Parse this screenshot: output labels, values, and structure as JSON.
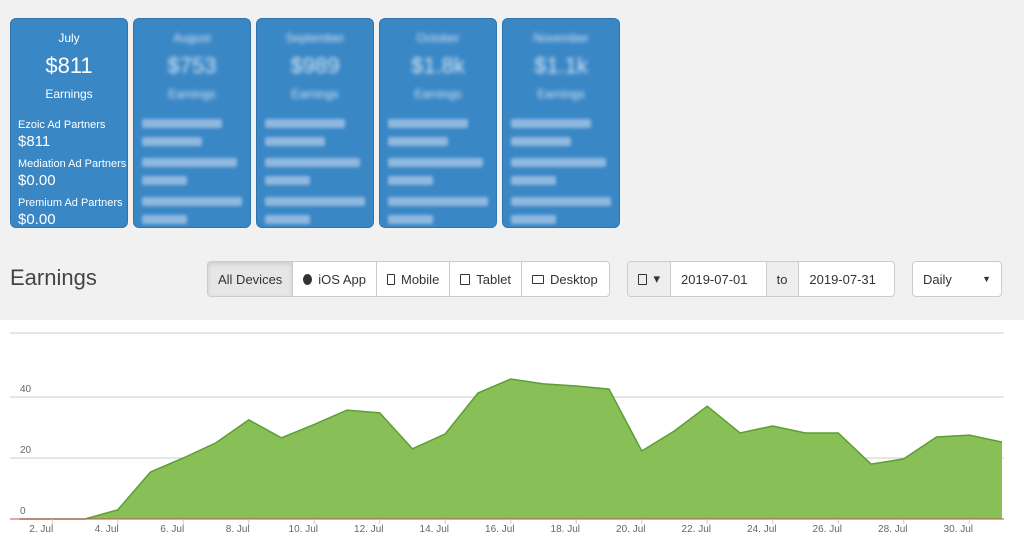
{
  "cards": [
    {
      "month": "July",
      "amount": "$811",
      "label": "Earnings",
      "rows": [
        {
          "label": "Ezoic Ad Partners",
          "value": "$811"
        },
        {
          "label": "Mediation Ad Partners",
          "value": "$0.00"
        },
        {
          "label": "Premium Ad Partners",
          "value": "$0.00"
        }
      ]
    },
    {
      "month": "August",
      "amount": "$753",
      "label": "Earnings"
    },
    {
      "month": "September",
      "amount": "$989",
      "label": "Earnings"
    },
    {
      "month": "October",
      "amount": "$1.8k",
      "label": "Earnings"
    },
    {
      "month": "November",
      "amount": "$1.1k",
      "label": "Earnings"
    }
  ],
  "section_title": "Earnings",
  "device_buttons": [
    "All Devices",
    "iOS App",
    "Mobile",
    "Tablet",
    "Desktop"
  ],
  "date_from": "2019-07-01",
  "date_separator": "to",
  "date_to": "2019-07-31",
  "interval": "Daily",
  "chart_data": {
    "type": "area",
    "categories": [
      null,
      "2. Jul",
      null,
      "4. Jul",
      null,
      "6. Jul",
      null,
      "8. Jul",
      null,
      "10. Jul",
      null,
      "12. Jul",
      null,
      "14. Jul",
      null,
      "16. Jul",
      null,
      "18. Jul",
      null,
      "20. Jul",
      null,
      "22. Jul",
      null,
      "24. Jul",
      null,
      "26. Jul",
      null,
      "28. Jul",
      null,
      "30. Jul",
      null
    ],
    "values": [
      0,
      0,
      0,
      3,
      15.4,
      20,
      25,
      32.5,
      26.6,
      31,
      35.7,
      34.8,
      23,
      27.9,
      41.3,
      45.9,
      44.3,
      43.6,
      42.6,
      22.3,
      28.9,
      37,
      28.2,
      30.5,
      28.2,
      28.2,
      18,
      19.7,
      26.9,
      27.5,
      25.2
    ],
    "color": "#88bf57",
    "line_color": "#5c9e35",
    "ylim": [
      0,
      60
    ],
    "yticks": [
      0,
      20,
      40
    ],
    "grid": true
  }
}
